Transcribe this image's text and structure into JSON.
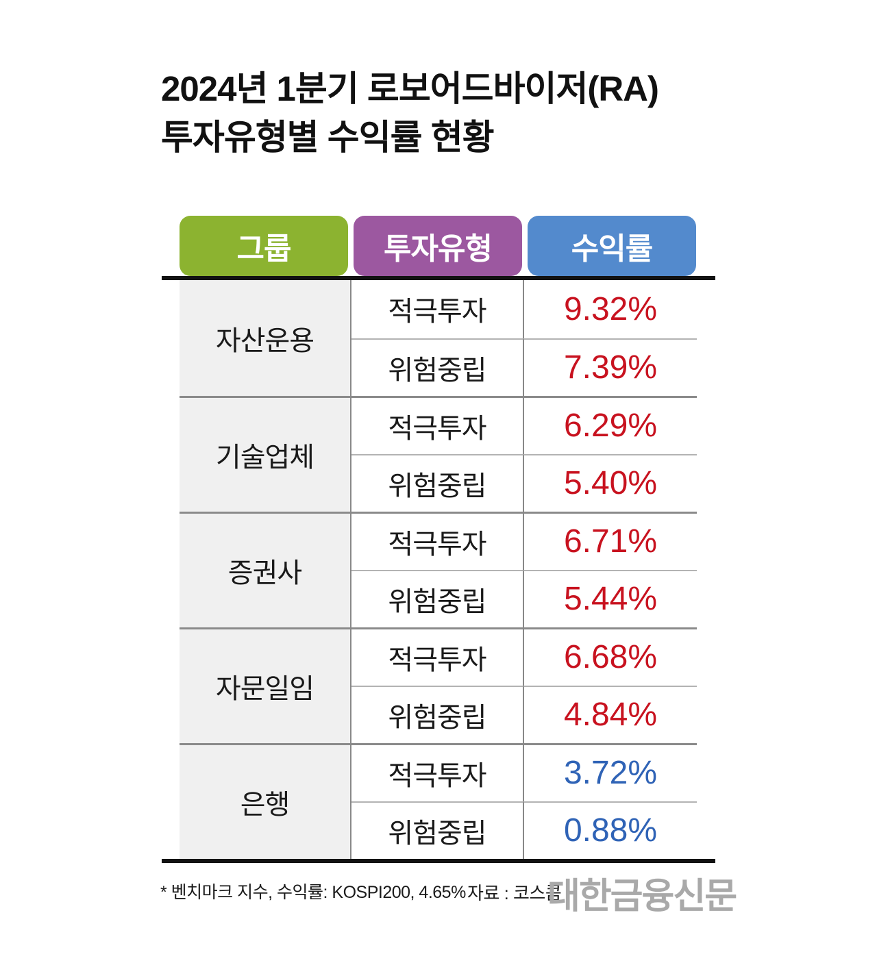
{
  "title": {
    "line1": "2024년 1분기 로보어드바이저(RA)",
    "line2": "투자유형별 수익률 현황"
  },
  "table": {
    "headers": [
      {
        "label": "그룹",
        "color": "#8cb330"
      },
      {
        "label": "투자유형",
        "color": "#9c58a0"
      },
      {
        "label": "수익률",
        "color": "#538acd"
      }
    ],
    "groups": [
      {
        "name": "자산운용",
        "rows": [
          {
            "type": "적극투자",
            "value": "9.32%",
            "value_color": "#c8121f"
          },
          {
            "type": "위험중립",
            "value": "7.39%",
            "value_color": "#c8121f"
          }
        ]
      },
      {
        "name": "기술업체",
        "rows": [
          {
            "type": "적극투자",
            "value": "6.29%",
            "value_color": "#c8121f"
          },
          {
            "type": "위험중립",
            "value": "5.40%",
            "value_color": "#c8121f"
          }
        ]
      },
      {
        "name": "증권사",
        "rows": [
          {
            "type": "적극투자",
            "value": "6.71%",
            "value_color": "#c8121f"
          },
          {
            "type": "위험중립",
            "value": "5.44%",
            "value_color": "#c8121f"
          }
        ]
      },
      {
        "name": "자문일임",
        "rows": [
          {
            "type": "적극투자",
            "value": "6.68%",
            "value_color": "#c8121f"
          },
          {
            "type": "위험중립",
            "value": "4.84%",
            "value_color": "#c8121f"
          }
        ]
      },
      {
        "name": "은행",
        "rows": [
          {
            "type": "적극투자",
            "value": "3.72%",
            "value_color": "#2f63b6"
          },
          {
            "type": "위험중립",
            "value": "0.88%",
            "value_color": "#2f63b6"
          }
        ]
      }
    ]
  },
  "footer": {
    "note": "* 벤치마크 지수, 수익률: KOSPI200, 4.65%",
    "source": "자료 : 코스콤",
    "logo": "대한금융신문"
  },
  "chart_data": {
    "type": "table",
    "title": "2024년 1분기 로보어드바이저(RA) 투자유형별 수익률 현황",
    "columns": [
      "그룹",
      "투자유형",
      "수익률"
    ],
    "rows": [
      [
        "자산운용",
        "적극투자",
        9.32
      ],
      [
        "자산운용",
        "위험중립",
        7.39
      ],
      [
        "기술업체",
        "적극투자",
        6.29
      ],
      [
        "기술업체",
        "위험중립",
        5.4
      ],
      [
        "증권사",
        "적극투자",
        6.71
      ],
      [
        "증권사",
        "위험중립",
        5.44
      ],
      [
        "자문일임",
        "적극투자",
        6.68
      ],
      [
        "자문일임",
        "위험중립",
        4.84
      ],
      [
        "은행",
        "적극투자",
        3.72
      ],
      [
        "은행",
        "위험중립",
        0.88
      ]
    ],
    "unit": "%",
    "value_color_positive_strong": "#c8121f",
    "value_color_low": "#2f63b6",
    "benchmark_note": "벤치마크 지수, 수익률: KOSPI200, 4.65%",
    "source": "코스콤"
  }
}
